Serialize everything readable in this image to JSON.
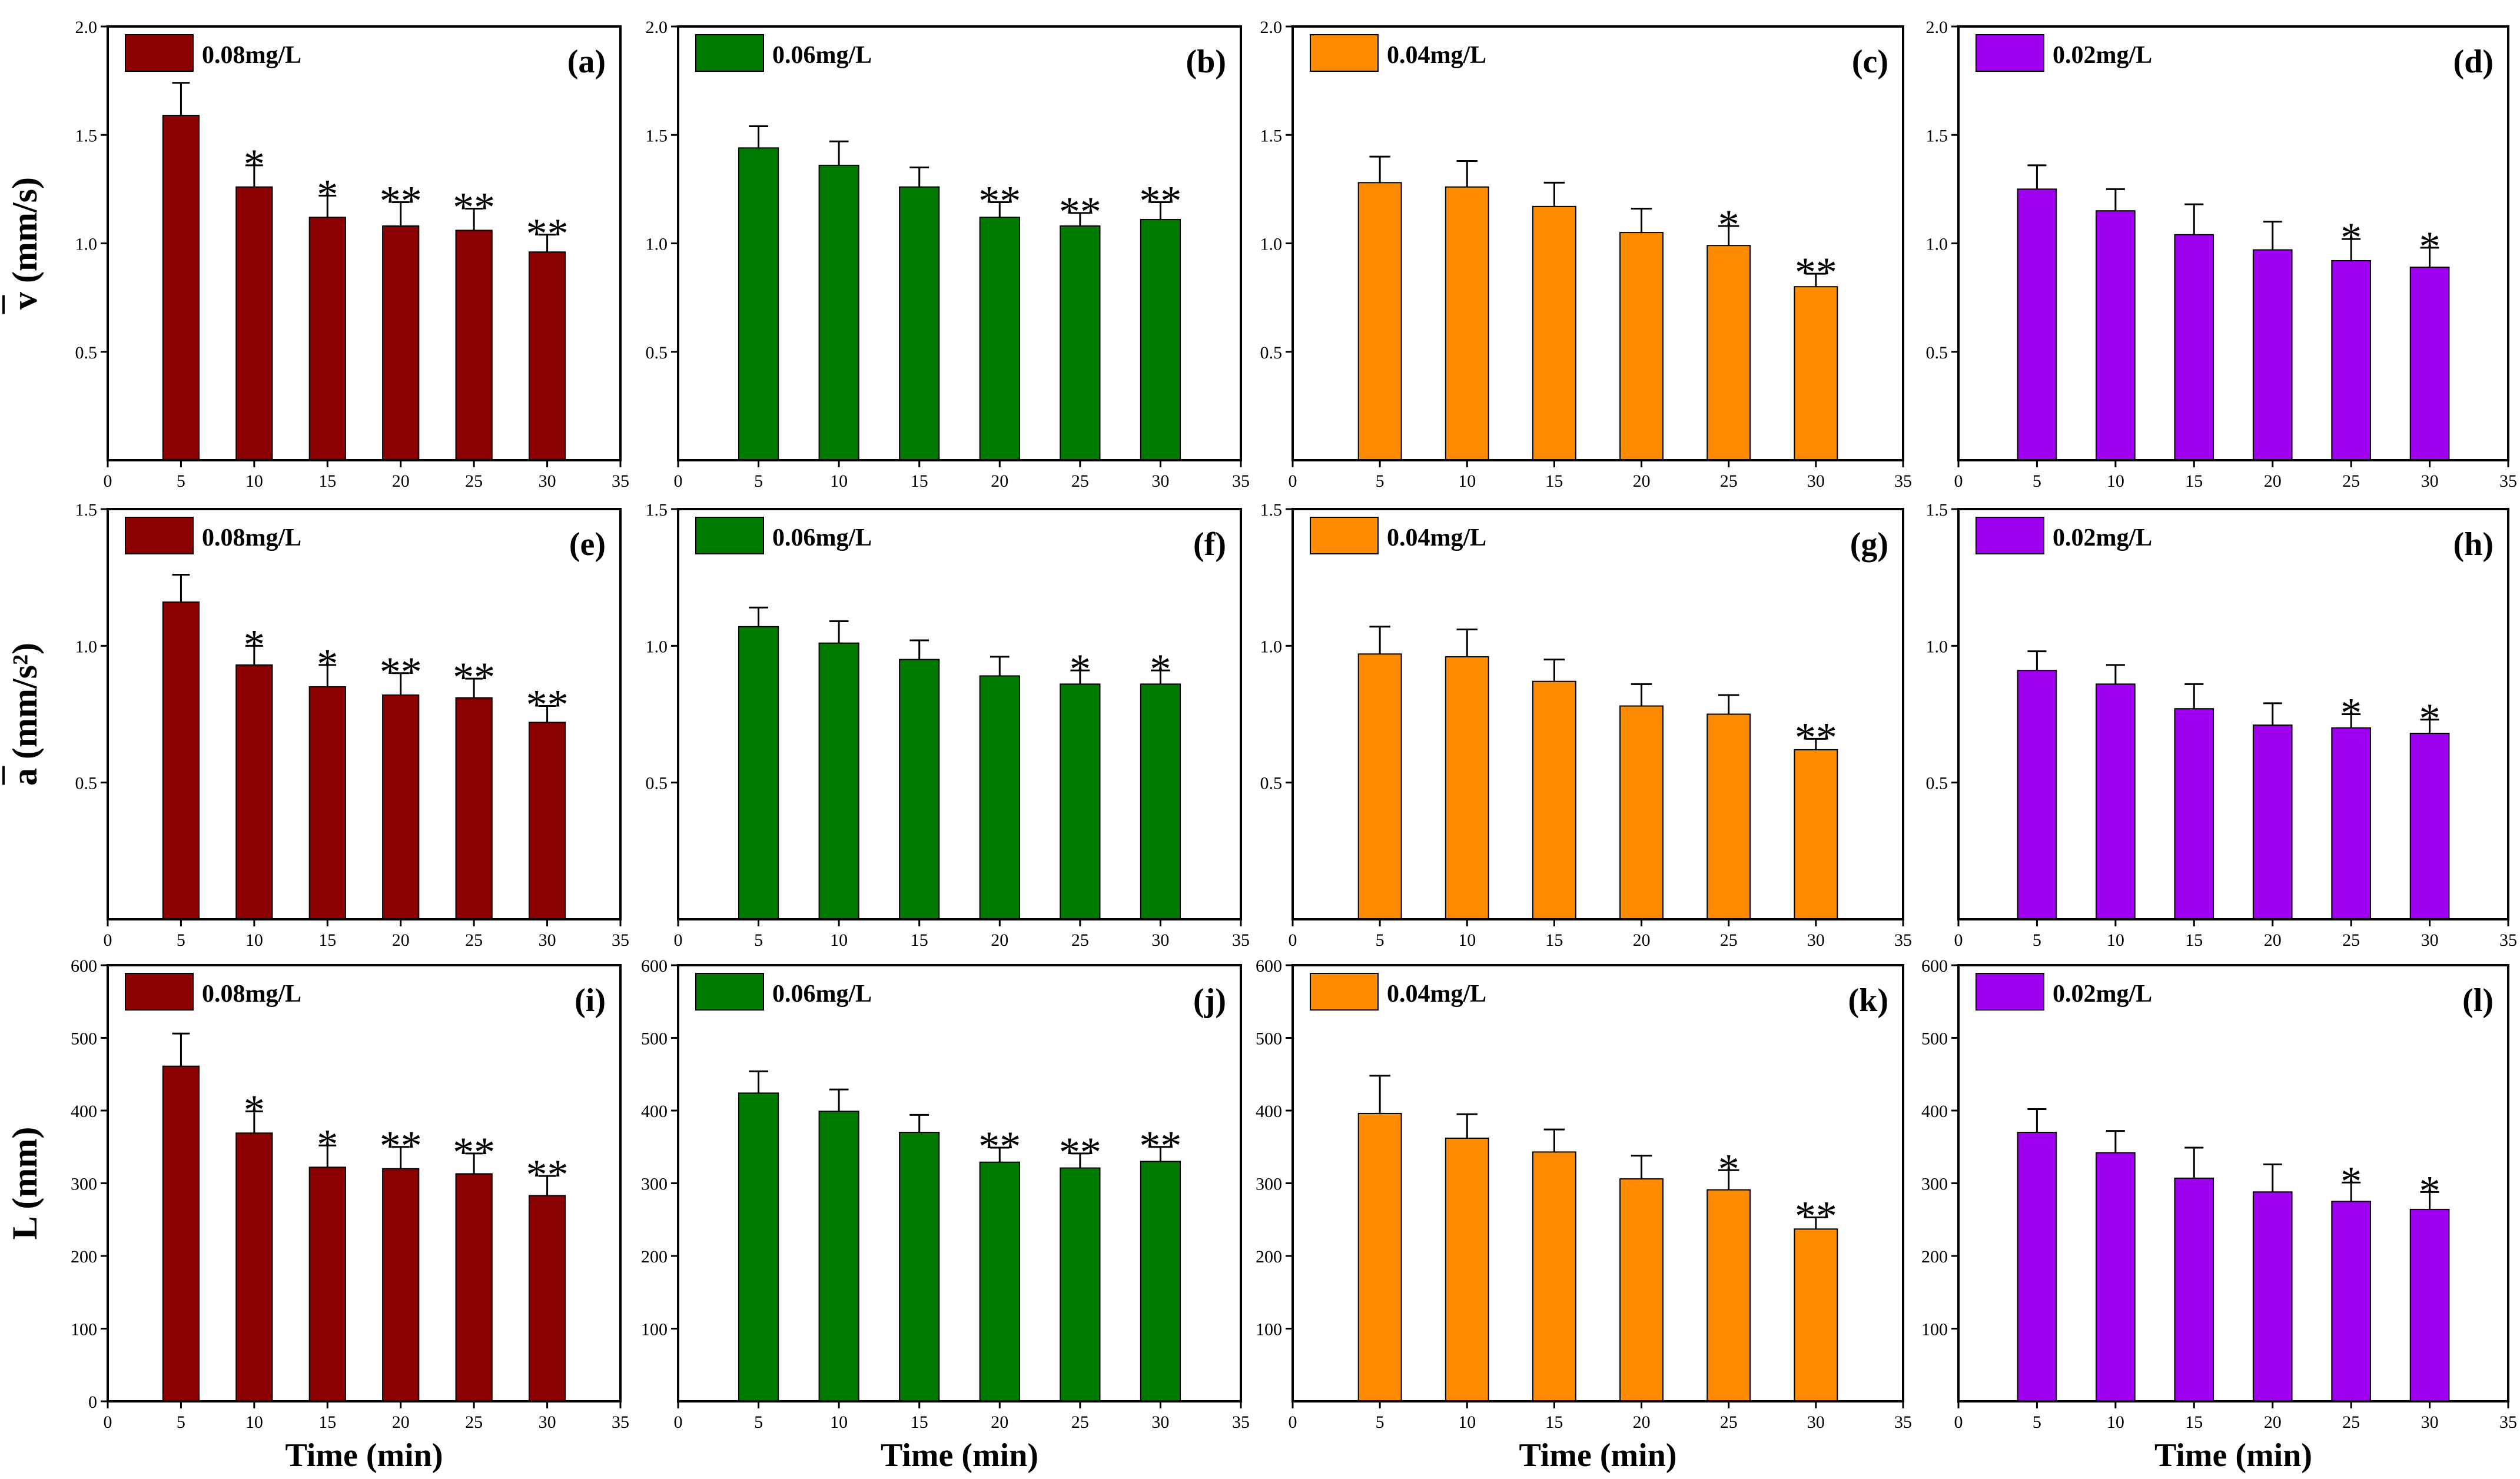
{
  "figure": {
    "x_axis_label": "Time (min)"
  },
  "colors": {
    "0.08mg/L": "#8b0000",
    "0.06mg/L": "#007a00",
    "0.04mg/L": "#ff8c00",
    "0.02mg/L": "#a000f0"
  },
  "chart_data": [
    {
      "panel": "(a)",
      "row": 0,
      "col": 0,
      "type": "bar",
      "legend": "0.08mg/L",
      "ylabel": "v (mm/s)",
      "xlabel": "",
      "x": [
        5,
        10,
        15,
        20,
        25,
        30
      ],
      "values": [
        1.59,
        1.26,
        1.12,
        1.08,
        1.06,
        0.96
      ],
      "errors": [
        0.15,
        0.1,
        0.1,
        0.11,
        0.1,
        0.08
      ],
      "significance": [
        "",
        "*",
        "*",
        "**",
        "**",
        "**"
      ],
      "xlim": [
        0,
        35
      ],
      "xticks": [
        0,
        5,
        10,
        15,
        20,
        25,
        30,
        35
      ],
      "ylim": [
        0,
        2.0
      ],
      "yticks": [
        "0.5",
        "1.0",
        "1.5",
        "2.0"
      ]
    },
    {
      "panel": "(b)",
      "row": 0,
      "col": 1,
      "type": "bar",
      "legend": "0.06mg/L",
      "ylabel": "",
      "xlabel": "",
      "x": [
        5,
        10,
        15,
        20,
        25,
        30
      ],
      "values": [
        1.44,
        1.36,
        1.26,
        1.12,
        1.08,
        1.11
      ],
      "errors": [
        0.1,
        0.11,
        0.09,
        0.07,
        0.06,
        0.08
      ],
      "significance": [
        "",
        "",
        "",
        "**",
        "**",
        "**"
      ],
      "xlim": [
        0,
        35
      ],
      "xticks": [
        0,
        5,
        10,
        15,
        20,
        25,
        30,
        35
      ],
      "ylim": [
        0,
        2.0
      ],
      "yticks": [
        "0.5",
        "1.0",
        "1.5",
        "2.0"
      ]
    },
    {
      "panel": "(c)",
      "row": 0,
      "col": 2,
      "type": "bar",
      "legend": "0.04mg/L",
      "ylabel": "",
      "xlabel": "",
      "x": [
        5,
        10,
        15,
        20,
        25,
        30
      ],
      "values": [
        1.28,
        1.26,
        1.17,
        1.05,
        0.99,
        0.8
      ],
      "errors": [
        0.12,
        0.12,
        0.11,
        0.11,
        0.09,
        0.06
      ],
      "significance": [
        "",
        "",
        "",
        "",
        "*",
        "**"
      ],
      "xlim": [
        0,
        35
      ],
      "xticks": [
        0,
        5,
        10,
        15,
        20,
        25,
        30,
        35
      ],
      "ylim": [
        0,
        2.0
      ],
      "yticks": [
        "0.5",
        "1.0",
        "1.5",
        "2.0"
      ]
    },
    {
      "panel": "(d)",
      "row": 0,
      "col": 3,
      "type": "bar",
      "legend": "0.02mg/L",
      "ylabel": "",
      "xlabel": "",
      "x": [
        5,
        10,
        15,
        20,
        25,
        30
      ],
      "values": [
        1.25,
        1.15,
        1.04,
        0.97,
        0.92,
        0.89
      ],
      "errors": [
        0.11,
        0.1,
        0.14,
        0.13,
        0.1,
        0.09
      ],
      "significance": [
        "",
        "",
        "",
        "",
        "*",
        "*"
      ],
      "xlim": [
        0,
        35
      ],
      "xticks": [
        0,
        5,
        10,
        15,
        20,
        25,
        30,
        35
      ],
      "ylim": [
        0,
        2.0
      ],
      "yticks": [
        "0.5",
        "1.0",
        "1.5",
        "2.0"
      ]
    },
    {
      "panel": "(e)",
      "row": 1,
      "col": 0,
      "type": "bar",
      "legend": "0.08mg/L",
      "ylabel": "a (mm/s²)",
      "xlabel": "",
      "x": [
        5,
        10,
        15,
        20,
        25,
        30
      ],
      "values": [
        1.16,
        0.93,
        0.85,
        0.82,
        0.81,
        0.72
      ],
      "errors": [
        0.1,
        0.07,
        0.08,
        0.08,
        0.07,
        0.06
      ],
      "significance": [
        "",
        "*",
        "*",
        "**",
        "**",
        "**"
      ],
      "xlim": [
        0,
        35
      ],
      "xticks": [
        0,
        5,
        10,
        15,
        20,
        25,
        30,
        35
      ],
      "ylim": [
        0,
        1.5
      ],
      "yticks": [
        "0.5",
        "1.0",
        "1.5"
      ]
    },
    {
      "panel": "(f)",
      "row": 1,
      "col": 1,
      "type": "bar",
      "legend": "0.06mg/L",
      "ylabel": "",
      "xlabel": "",
      "x": [
        5,
        10,
        15,
        20,
        25,
        30
      ],
      "values": [
        1.07,
        1.01,
        0.95,
        0.89,
        0.86,
        0.86
      ],
      "errors": [
        0.07,
        0.08,
        0.07,
        0.07,
        0.05,
        0.05
      ],
      "significance": [
        "",
        "",
        "",
        "",
        "*",
        "*"
      ],
      "xlim": [
        0,
        35
      ],
      "xticks": [
        0,
        5,
        10,
        15,
        20,
        25,
        30,
        35
      ],
      "ylim": [
        0,
        1.5
      ],
      "yticks": [
        "0.5",
        "1.0",
        "1.5"
      ]
    },
    {
      "panel": "(g)",
      "row": 1,
      "col": 2,
      "type": "bar",
      "legend": "0.04mg/L",
      "ylabel": "",
      "xlabel": "",
      "x": [
        5,
        10,
        15,
        20,
        25,
        30
      ],
      "values": [
        0.97,
        0.96,
        0.87,
        0.78,
        0.75,
        0.62
      ],
      "errors": [
        0.1,
        0.1,
        0.08,
        0.08,
        0.07,
        0.04
      ],
      "significance": [
        "",
        "",
        "",
        "",
        "",
        "**"
      ],
      "xlim": [
        0,
        35
      ],
      "xticks": [
        0,
        5,
        10,
        15,
        20,
        25,
        30,
        35
      ],
      "ylim": [
        0,
        1.5
      ],
      "yticks": [
        "0.5",
        "1.0",
        "1.5"
      ]
    },
    {
      "panel": "(h)",
      "row": 1,
      "col": 3,
      "type": "bar",
      "legend": "0.02mg/L",
      "ylabel": "",
      "xlabel": "",
      "x": [
        5,
        10,
        15,
        20,
        25,
        30
      ],
      "values": [
        0.91,
        0.86,
        0.77,
        0.71,
        0.7,
        0.68
      ],
      "errors": [
        0.07,
        0.07,
        0.09,
        0.08,
        0.05,
        0.05
      ],
      "significance": [
        "",
        "",
        "",
        "",
        "*",
        "*"
      ],
      "xlim": [
        0,
        35
      ],
      "xticks": [
        0,
        5,
        10,
        15,
        20,
        25,
        30,
        35
      ],
      "ylim": [
        0,
        1.5
      ],
      "yticks": [
        "0.5",
        "1.0",
        "1.5"
      ]
    },
    {
      "panel": "(i)",
      "row": 2,
      "col": 0,
      "type": "bar",
      "legend": "0.08mg/L",
      "ylabel": "L (mm)",
      "xlabel": "Time (min)",
      "x": [
        5,
        10,
        15,
        20,
        25,
        30
      ],
      "values": [
        461,
        369,
        322,
        320,
        313,
        283
      ],
      "errors": [
        45,
        30,
        30,
        30,
        28,
        27
      ],
      "significance": [
        "",
        "*",
        "*",
        "**",
        "**",
        "**"
      ],
      "xlim": [
        0,
        35
      ],
      "xticks": [
        0,
        5,
        10,
        15,
        20,
        25,
        30,
        35
      ],
      "ylim": [
        0,
        600
      ],
      "yticks": [
        "0",
        "100",
        "200",
        "300",
        "400",
        "500",
        "600"
      ]
    },
    {
      "panel": "(j)",
      "row": 2,
      "col": 1,
      "type": "bar",
      "legend": "0.06mg/L",
      "ylabel": "",
      "xlabel": "Time (min)",
      "x": [
        5,
        10,
        15,
        20,
        25,
        30
      ],
      "values": [
        424,
        399,
        370,
        329,
        321,
        330
      ],
      "errors": [
        30,
        30,
        24,
        20,
        20,
        20
      ],
      "significance": [
        "",
        "",
        "",
        "**",
        "**",
        "**"
      ],
      "xlim": [
        0,
        35
      ],
      "xticks": [
        0,
        5,
        10,
        15,
        20,
        25,
        30,
        35
      ],
      "ylim": [
        0,
        600
      ],
      "yticks": [
        "100",
        "200",
        "300",
        "400",
        "500",
        "600"
      ]
    },
    {
      "panel": "(k)",
      "row": 2,
      "col": 2,
      "type": "bar",
      "legend": "0.04mg/L",
      "ylabel": "",
      "xlabel": "Time (min)",
      "x": [
        5,
        10,
        15,
        20,
        25,
        30
      ],
      "values": [
        396,
        362,
        343,
        306,
        291,
        237
      ],
      "errors": [
        52,
        33,
        31,
        32,
        27,
        16
      ],
      "significance": [
        "",
        "",
        "",
        "",
        "*",
        "**"
      ],
      "xlim": [
        0,
        35
      ],
      "xticks": [
        0,
        5,
        10,
        15,
        20,
        25,
        30,
        35
      ],
      "ylim": [
        0,
        600
      ],
      "yticks": [
        "100",
        "200",
        "300",
        "400",
        "500",
        "600"
      ]
    },
    {
      "panel": "(l)",
      "row": 2,
      "col": 3,
      "type": "bar",
      "legend": "0.02mg/L",
      "ylabel": "",
      "xlabel": "Time (min)",
      "x": [
        5,
        10,
        15,
        20,
        25,
        30
      ],
      "values": [
        370,
        342,
        307,
        288,
        275,
        264
      ],
      "errors": [
        32,
        30,
        42,
        38,
        26,
        24
      ],
      "significance": [
        "",
        "",
        "",
        "",
        "*",
        "*"
      ],
      "xlim": [
        0,
        35
      ],
      "xticks": [
        0,
        5,
        10,
        15,
        20,
        25,
        30,
        35
      ],
      "ylim": [
        0,
        600
      ],
      "yticks": [
        "100",
        "200",
        "300",
        "400",
        "500",
        "600"
      ]
    }
  ]
}
